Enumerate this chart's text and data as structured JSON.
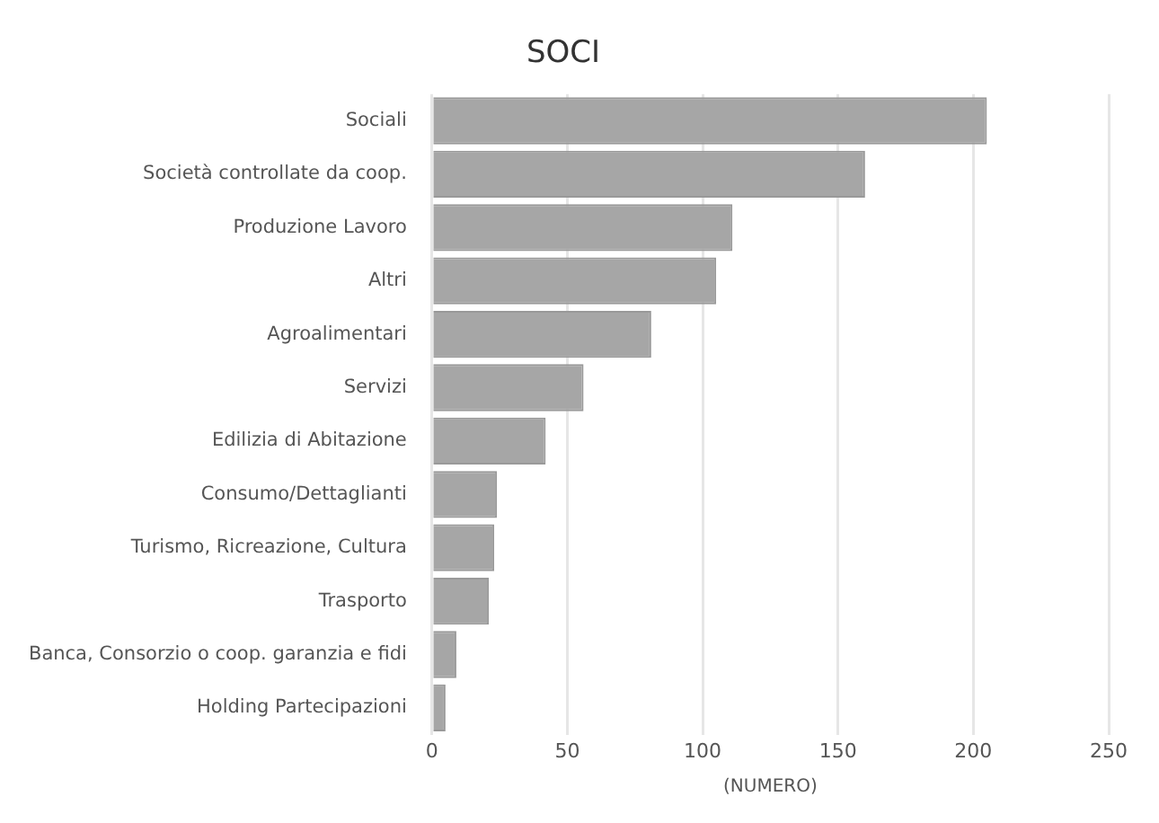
{
  "chart_data": {
    "type": "bar",
    "orientation": "horizontal",
    "title": "SOCI",
    "xlabel": "(NUMERO)",
    "categories": [
      "Sociali",
      "Società controllate da coop.",
      "Produzione Lavoro",
      "Altri",
      "Agroalimentari",
      "Servizi",
      "Edilizia di Abitazione",
      "Consumo/Dettaglianti",
      "Turismo, Ricreazione, Cultura",
      "Trasporto",
      "Banca, Consorzio o coop. garanzia e fidi",
      "Holding Partecipazioni"
    ],
    "values": [
      205,
      160,
      111,
      105,
      81,
      56,
      42,
      24,
      23,
      21,
      9,
      5
    ],
    "color": "#a6a6a6",
    "xlim": [
      0,
      250
    ],
    "xticks": [
      0,
      50,
      100,
      150,
      200,
      250
    ],
    "grid": "x",
    "legend": false
  }
}
